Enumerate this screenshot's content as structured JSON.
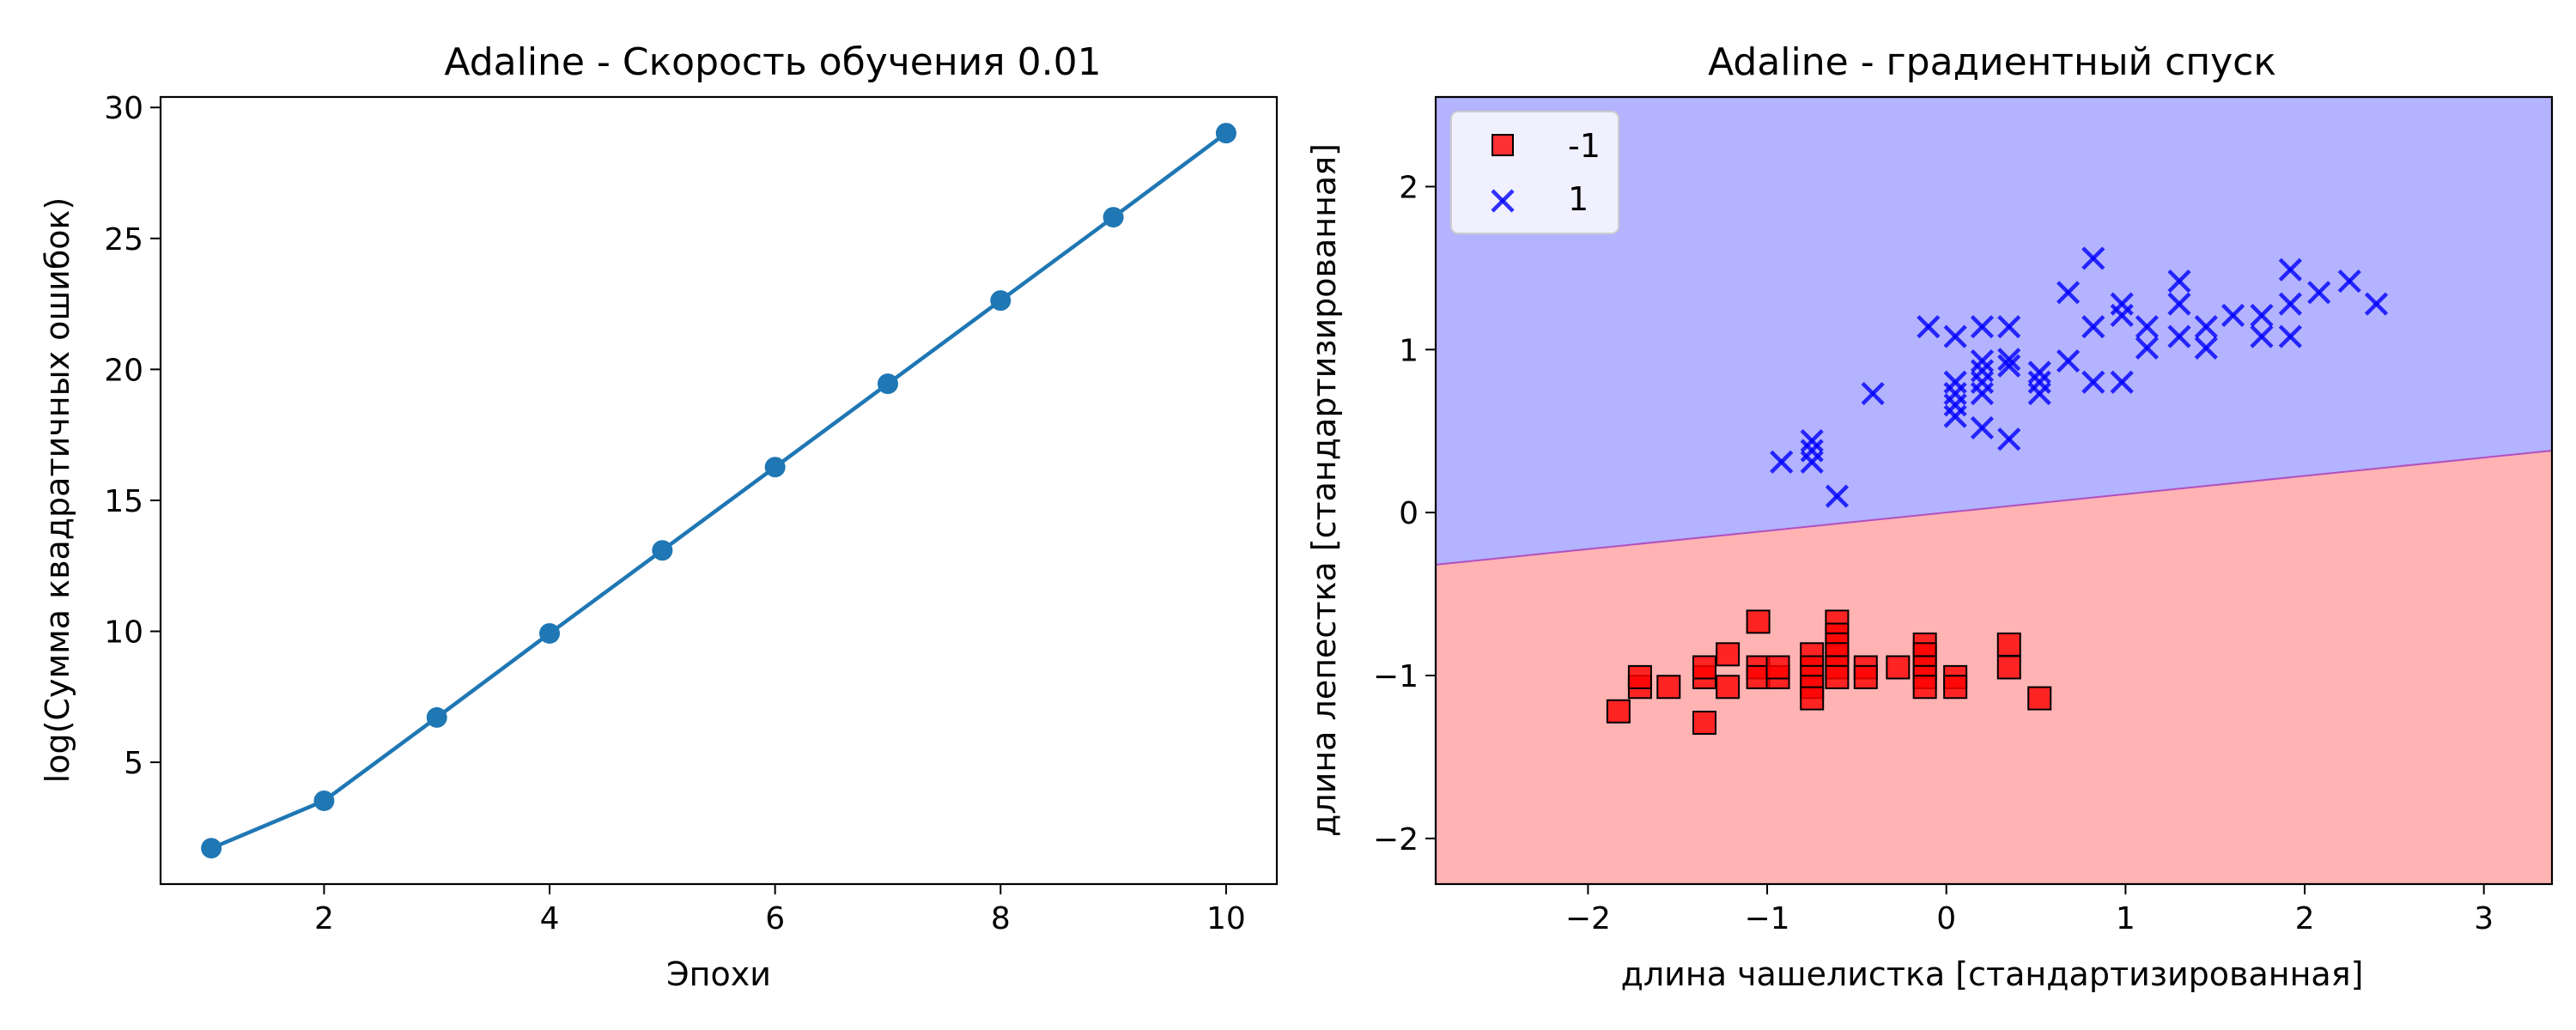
{
  "chart_data": [
    {
      "type": "line",
      "title": "Adaline - Скорость обучения 0.01",
      "xlabel": "Эпохи",
      "ylabel": "log(Сумма квадратичных ошибок)",
      "xlim": [
        0.55,
        10.45
      ],
      "ylim": [
        0.35,
        30.4
      ],
      "xticks": [
        2,
        4,
        6,
        8,
        10
      ],
      "yticks": [
        5,
        10,
        15,
        20,
        25,
        30
      ],
      "grid": false,
      "x": [
        1,
        2,
        3,
        4,
        5,
        6,
        7,
        8,
        9,
        10
      ],
      "series": [
        {
          "values": [
            1.72,
            3.53,
            6.71,
            9.92,
            13.09,
            16.27,
            19.45,
            22.63,
            25.81,
            29.02
          ],
          "color": "#1f77b4",
          "marker": "circle"
        }
      ]
    },
    {
      "type": "scatter",
      "title": "Adaline - градиентный спуск",
      "xlabel": "длина чашелистка [стандартизированная]",
      "ylabel": "длина лепестка [стандартизированная]",
      "xlim": [
        -2.85,
        3.38
      ],
      "ylim": [
        -2.28,
        2.55
      ],
      "xticks": [
        -2,
        -1,
        0,
        1,
        2,
        3
      ],
      "yticks": [
        -2,
        -1,
        0,
        1,
        2
      ],
      "grid": false,
      "legend_position": "top-left",
      "decision_boundary": {
        "points": [
          [
            -2.85,
            -0.32
          ],
          [
            3.38,
            0.38
          ]
        ],
        "region_colors": {
          "-1": "#ffb3b3",
          "1": "#b3b3ff"
        }
      },
      "series": [
        {
          "name": "-1",
          "marker": "square",
          "color": "#ff0000",
          "points": [
            [
              -1.83,
              -1.22
            ],
            [
              -1.71,
              -1.07
            ],
            [
              -1.71,
              -1.01
            ],
            [
              -1.55,
              -1.07
            ],
            [
              -1.35,
              -1.29
            ],
            [
              -1.35,
              -1.01
            ],
            [
              -1.35,
              -0.95
            ],
            [
              -1.22,
              -1.07
            ],
            [
              -1.22,
              -0.87
            ],
            [
              -1.05,
              -0.67
            ],
            [
              -1.05,
              -0.95
            ],
            [
              -1.05,
              -1.01
            ],
            [
              -0.94,
              -1.01
            ],
            [
              -0.94,
              -0.95
            ],
            [
              -0.75,
              -0.87
            ],
            [
              -0.75,
              -0.95
            ],
            [
              -0.75,
              -1.01
            ],
            [
              -0.75,
              -1.07
            ],
            [
              -0.75,
              -1.14
            ],
            [
              -0.61,
              -0.67
            ],
            [
              -0.61,
              -0.75
            ],
            [
              -0.61,
              -0.81
            ],
            [
              -0.61,
              -0.87
            ],
            [
              -0.61,
              -0.95
            ],
            [
              -0.61,
              -1.01
            ],
            [
              -0.45,
              -0.95
            ],
            [
              -0.45,
              -1.01
            ],
            [
              -0.27,
              -0.95
            ],
            [
              -0.12,
              -0.81
            ],
            [
              -0.12,
              -0.87
            ],
            [
              -0.12,
              -0.95
            ],
            [
              -0.12,
              -1.01
            ],
            [
              -0.12,
              -1.07
            ],
            [
              0.05,
              -1.01
            ],
            [
              0.05,
              -1.07
            ],
            [
              0.35,
              -0.81
            ],
            [
              0.35,
              -0.95
            ],
            [
              0.52,
              -1.14
            ]
          ]
        },
        {
          "name": "1",
          "marker": "x",
          "color": "#0000ff",
          "points": [
            [
              -0.92,
              0.31
            ],
            [
              -0.75,
              0.38
            ],
            [
              -0.75,
              0.44
            ],
            [
              -0.75,
              0.31
            ],
            [
              -0.61,
              0.1
            ],
            [
              -0.41,
              0.73
            ],
            [
              -0.1,
              1.14
            ],
            [
              0.05,
              1.08
            ],
            [
              0.05,
              0.8
            ],
            [
              0.05,
              0.73
            ],
            [
              0.05,
              0.66
            ],
            [
              0.05,
              0.59
            ],
            [
              0.2,
              1.14
            ],
            [
              0.2,
              0.93
            ],
            [
              0.2,
              0.87
            ],
            [
              0.2,
              0.8
            ],
            [
              0.2,
              0.73
            ],
            [
              0.2,
              0.52
            ],
            [
              0.35,
              1.14
            ],
            [
              0.35,
              0.94
            ],
            [
              0.35,
              0.9
            ],
            [
              0.35,
              0.45
            ],
            [
              0.52,
              0.8
            ],
            [
              0.52,
              0.73
            ],
            [
              0.52,
              0.86
            ],
            [
              0.68,
              0.93
            ],
            [
              0.68,
              1.35
            ],
            [
              0.82,
              1.56
            ],
            [
              0.82,
              1.14
            ],
            [
              0.82,
              0.8
            ],
            [
              0.98,
              1.28
            ],
            [
              0.98,
              1.21
            ],
            [
              0.98,
              0.8
            ],
            [
              1.12,
              1.14
            ],
            [
              1.12,
              1.01
            ],
            [
              1.3,
              1.42
            ],
            [
              1.3,
              1.28
            ],
            [
              1.3,
              1.08
            ],
            [
              1.45,
              1.14
            ],
            [
              1.45,
              1.01
            ],
            [
              1.6,
              1.21
            ],
            [
              1.76,
              1.21
            ],
            [
              1.76,
              1.08
            ],
            [
              1.92,
              1.49
            ],
            [
              1.92,
              1.28
            ],
            [
              1.92,
              1.08
            ],
            [
              2.08,
              1.35
            ],
            [
              2.25,
              1.42
            ],
            [
              2.4,
              1.28
            ]
          ]
        }
      ]
    }
  ]
}
